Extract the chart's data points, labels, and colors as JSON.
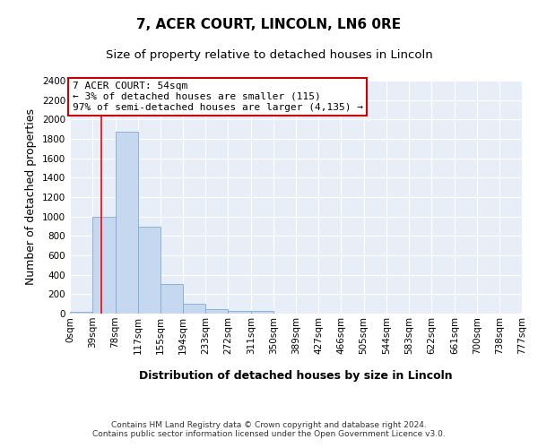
{
  "title": "7, ACER COURT, LINCOLN, LN6 0RE",
  "subtitle": "Size of property relative to detached houses in Lincoln",
  "xlabel": "Distribution of detached houses by size in Lincoln",
  "ylabel": "Number of detached properties",
  "bins": [
    0,
    39,
    78,
    117,
    155,
    194,
    233,
    272,
    311,
    350,
    389,
    427,
    466,
    505,
    544,
    583,
    622,
    661,
    700,
    738,
    777
  ],
  "counts": [
    20,
    1000,
    1870,
    900,
    305,
    100,
    45,
    30,
    25,
    0,
    0,
    0,
    0,
    0,
    0,
    0,
    0,
    0,
    0,
    0
  ],
  "bar_color": "#c5d8f0",
  "bar_edge_color": "#7aadd4",
  "background_color": "#e8eef8",
  "grid_color": "#ffffff",
  "ylim": [
    0,
    2400
  ],
  "yticks": [
    0,
    200,
    400,
    600,
    800,
    1000,
    1200,
    1400,
    1600,
    1800,
    2000,
    2200,
    2400
  ],
  "xtick_labels": [
    "0sqm",
    "39sqm",
    "78sqm",
    "117sqm",
    "155sqm",
    "194sqm",
    "233sqm",
    "272sqm",
    "311sqm",
    "350sqm",
    "389sqm",
    "427sqm",
    "466sqm",
    "505sqm",
    "544sqm",
    "583sqm",
    "622sqm",
    "661sqm",
    "700sqm",
    "738sqm",
    "777sqm"
  ],
  "red_line_x": 54,
  "annotation_line1": "7 ACER COURT: 54sqm",
  "annotation_line2": "← 3% of detached houses are smaller (115)",
  "annotation_line3": "97% of semi-detached houses are larger (4,135) →",
  "annotation_box_color": "#ffffff",
  "annotation_border_color": "#cc0000",
  "footer_text": "Contains HM Land Registry data © Crown copyright and database right 2024.\nContains public sector information licensed under the Open Government Licence v3.0.",
  "title_fontsize": 11,
  "subtitle_fontsize": 9.5,
  "tick_fontsize": 7.5,
  "ylabel_fontsize": 9,
  "xlabel_fontsize": 9,
  "annotation_fontsize": 8
}
